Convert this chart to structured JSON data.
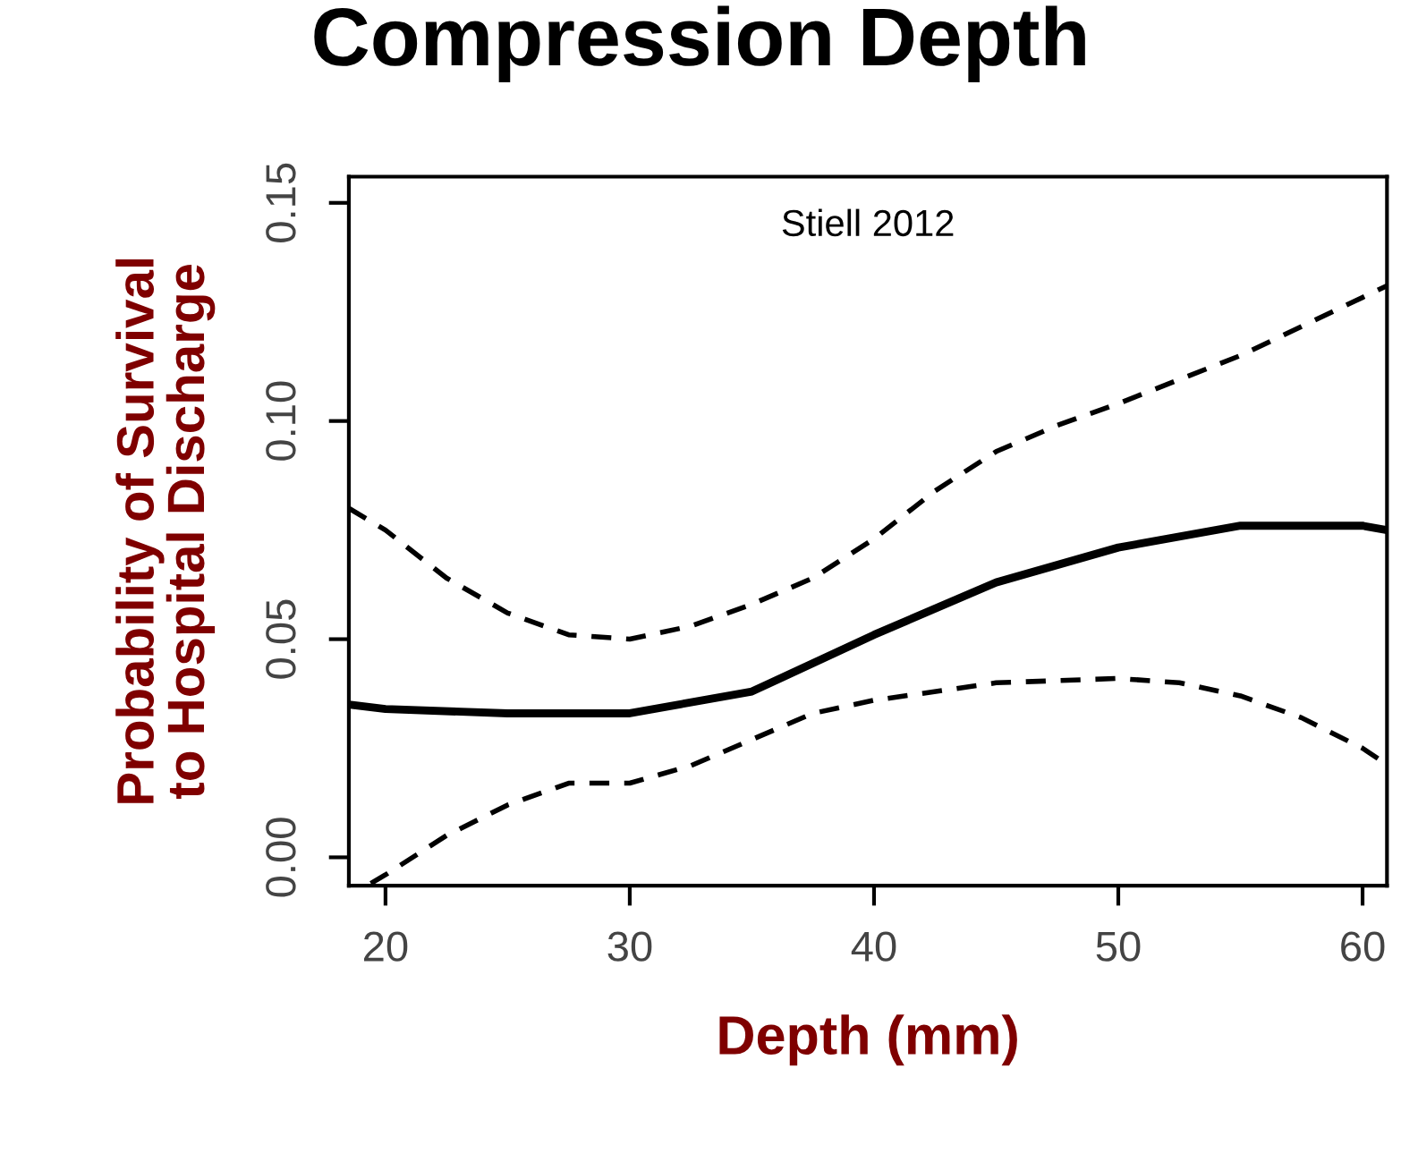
{
  "chart_data": {
    "type": "line",
    "title": "Compression Depth",
    "xlabel": "Depth (mm)",
    "ylabel": "Probability of Survival\nto Hospital Discharge",
    "annotations": [
      "Stiell 2012"
    ],
    "xlim": [
      18.5,
      61
    ],
    "ylim": [
      -0.0065,
      0.156
    ],
    "xticks": [
      20,
      30,
      40,
      50,
      60
    ],
    "yticks": [
      {
        "value": 0,
        "label": "0.00"
      },
      {
        "value": 0.05,
        "label": "0.05"
      },
      {
        "value": 0.1,
        "label": "0.10"
      },
      {
        "value": 0.15,
        "label": "0.15"
      }
    ],
    "grid": false,
    "legend": false,
    "marker": "none",
    "series": [
      {
        "color": "#000000",
        "line_style": "solid",
        "x": [
          18.5,
          20,
          25,
          30,
          35,
          40,
          45,
          50,
          55,
          60,
          61
        ],
        "values": [
          0.035,
          0.034,
          0.033,
          0.033,
          0.038,
          0.051,
          0.063,
          0.071,
          0.076,
          0.076,
          0.075
        ]
      },
      {
        "color": "#000000",
        "line_style": "dashed",
        "x": [
          18.5,
          20,
          22.5,
          25,
          27.5,
          30,
          32.5,
          35,
          37.5,
          40,
          42.5,
          45,
          47.5,
          50,
          55,
          61
        ],
        "values": [
          0.08,
          0.075,
          0.064,
          0.056,
          0.051,
          0.05,
          0.053,
          0.058,
          0.064,
          0.073,
          0.084,
          0.093,
          0.099,
          0.104,
          0.115,
          0.131
        ]
      },
      {
        "color": "#000000",
        "line_style": "dashed",
        "x": [
          19.4,
          20,
          22.5,
          25,
          27.5,
          30,
          32.5,
          35,
          37.5,
          40,
          45,
          50,
          52.5,
          55,
          57.5,
          60,
          60.8
        ],
        "values": [
          -0.006,
          -0.004,
          0.005,
          0.012,
          0.017,
          0.017,
          0.021,
          0.027,
          0.033,
          0.036,
          0.04,
          0.041,
          0.04,
          0.037,
          0.032,
          0.025,
          0.022
        ]
      }
    ]
  }
}
